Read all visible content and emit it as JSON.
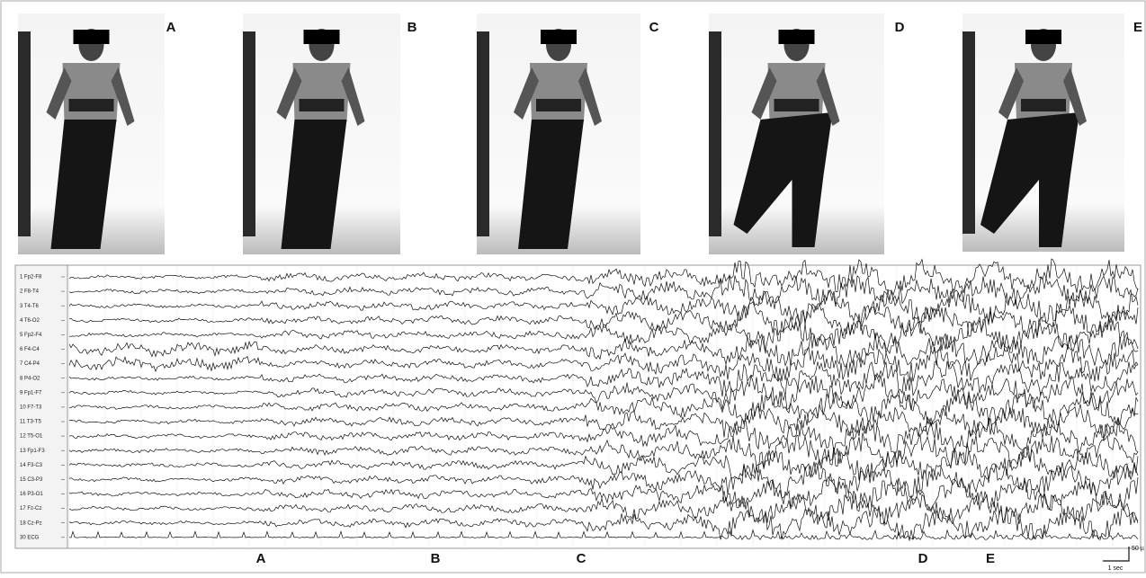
{
  "panels": [
    {
      "label": "A"
    },
    {
      "label": "B"
    },
    {
      "label": "C"
    },
    {
      "label": "D"
    },
    {
      "label": "E"
    }
  ],
  "eeg": {
    "channels": [
      "1 Fp2-F8",
      "2 F8-T4",
      "3 T4-T6",
      "4 T6-O2",
      "5 Fp2-F4",
      "6 F4-C4",
      "7 C4-P4",
      "8 P4-O2",
      "9 Fp1-F7",
      "10 F7-T3",
      "11 T3-T5",
      "12 T5-O1",
      "13 Fp1-F3",
      "14 F3-C3",
      "15 C3-P3",
      "16 P3-O1",
      "17 Fz-Cz",
      "18 Cz-Pz",
      "30 ECG"
    ],
    "markers": [
      "A",
      "B",
      "C",
      "D",
      "E"
    ],
    "scale": {
      "amplitude": "50 µ",
      "time": "1 sec"
    }
  }
}
